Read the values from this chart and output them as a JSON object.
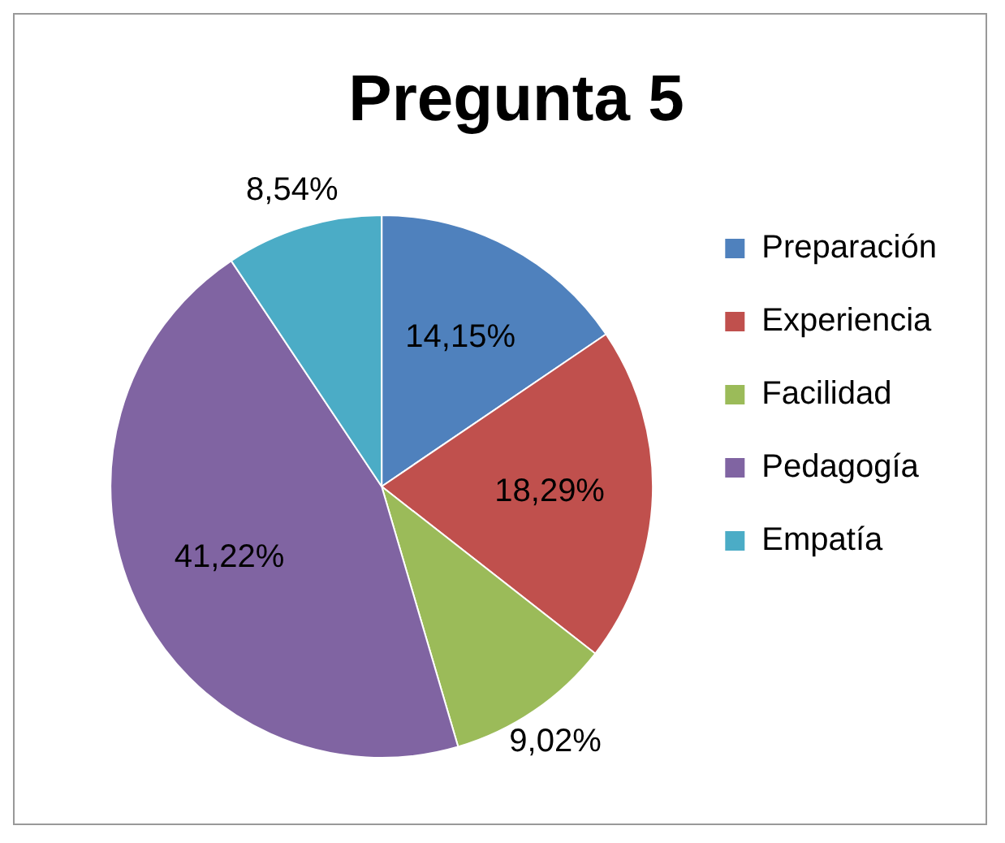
{
  "chart_data": {
    "type": "pie",
    "title": "Pregunta 5",
    "categories": [
      "Preparación",
      "Experiencia",
      "Facilidad",
      "Pedagogía",
      "Empatía"
    ],
    "values": [
      14.15,
      18.29,
      9.02,
      41.22,
      8.54
    ],
    "colors": [
      "#4f81bd",
      "#c0504d",
      "#9bbb59",
      "#8064a2",
      "#4bacc6"
    ],
    "value_labels": [
      "14,15%",
      "18,29%",
      "9,02%",
      "41,22%",
      "8,54%"
    ],
    "legend": "right"
  }
}
